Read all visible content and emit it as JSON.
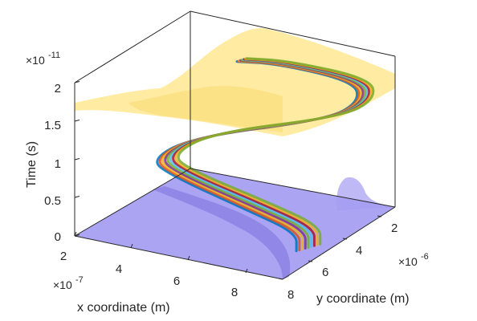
{
  "chart_data": {
    "type": "line",
    "projection": "3d",
    "xlabel": "x coordinate (m)",
    "ylabel": "y coordinate (m)",
    "zlabel": "Time (s)",
    "x_ticks": [
      "2",
      "4",
      "6",
      "8"
    ],
    "y_ticks": [
      "2",
      "4",
      "6",
      "8"
    ],
    "z_ticks": [
      "0",
      "0.5",
      "1",
      "1.5",
      "2"
    ],
    "x_multiplier": {
      "base": "×10",
      "exp": "-7"
    },
    "y_multiplier": {
      "base": "×10",
      "exp": "-6"
    },
    "z_multiplier": {
      "base": "×10",
      "exp": "-11"
    },
    "xlim": [
      2e-07,
      8.5e-07
    ],
    "ylim": [
      1e-06,
      8e-06
    ],
    "zlim": [
      0,
      2e-11
    ],
    "grid": false,
    "surfaces": [
      {
        "z": 0,
        "color": "#8f85ee",
        "opacity": 0.75
      },
      {
        "z": 1.95e-11,
        "color": "#ffe27a",
        "opacity": 0.7
      }
    ],
    "series_colors": [
      "#0072BD",
      "#D95319",
      "#EDB120",
      "#7E2F8E",
      "#77AC30",
      "#4DBEEE",
      "#A2142F",
      "#EDB120",
      "#77AC30"
    ]
  }
}
